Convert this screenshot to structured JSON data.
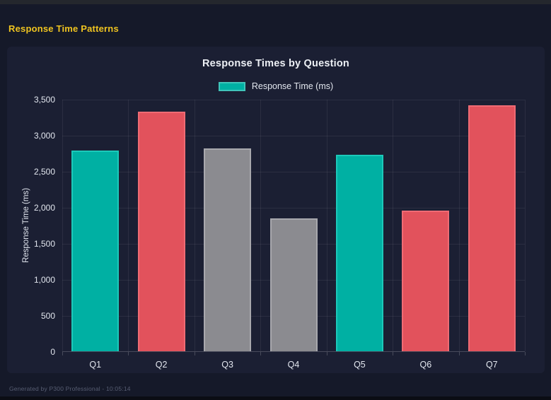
{
  "header": {
    "title": "Response Time Patterns"
  },
  "footer": {
    "text": "Generated by P300 Professional - 10:05:14"
  },
  "colors": {
    "accent_yellow": "#f0c420",
    "teal": "#00b0a3",
    "red": "#e2525c",
    "gray": "#8b8b90",
    "page_bg": "#151929",
    "panel_bg": "#1b1f33"
  },
  "chart_data": {
    "type": "bar",
    "title": "Response Times by Question",
    "legend": {
      "position": "top",
      "entries": [
        {
          "label": "Response Time (ms)",
          "color": "#00b0a3"
        }
      ]
    },
    "categories": [
      "Q1",
      "Q2",
      "Q3",
      "Q4",
      "Q5",
      "Q6",
      "Q7"
    ],
    "series": [
      {
        "name": "Response Time (ms)",
        "values": [
          2785,
          3320,
          2815,
          1845,
          2725,
          1950,
          3410
        ]
      }
    ],
    "bar_colors": [
      "#00b0a3",
      "#e2525c",
      "#8b8b90",
      "#8b8b90",
      "#00b0a3",
      "#e2525c",
      "#e2525c"
    ],
    "bar_border_colors": [
      "#1cc9ba",
      "#ef6b74",
      "#a8a8ad",
      "#a8a8ad",
      "#1cc9ba",
      "#ef6b74",
      "#ef6b74"
    ],
    "xlabel": "",
    "ylabel": "Response Time (ms)",
    "ylim": [
      0,
      3500
    ],
    "yticks": [
      0,
      500,
      1000,
      1500,
      2000,
      2500,
      3000,
      3500
    ],
    "ytick_labels": [
      "0",
      "500",
      "1,000",
      "1,500",
      "2,000",
      "2,500",
      "3,000",
      "3,500"
    ],
    "grid": true
  }
}
